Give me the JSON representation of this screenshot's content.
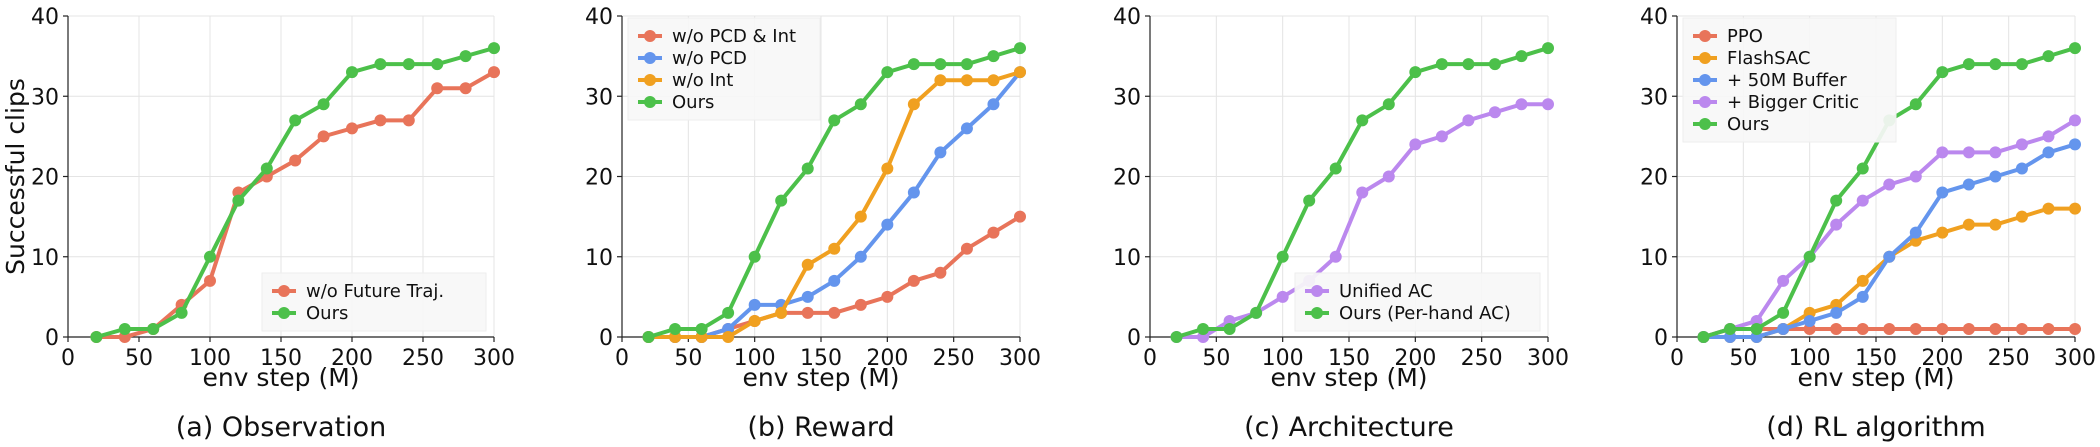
{
  "chart_data": [
    {
      "type": "line",
      "caption": "(a) Observation",
      "xlabel": "env step (M)",
      "ylabel": "Successful clips",
      "xlim": [
        0,
        300
      ],
      "ylim": [
        0,
        40
      ],
      "xticks": [
        "0",
        "50",
        "100",
        "150",
        "200",
        "250",
        "300"
      ],
      "yticks": [
        "0",
        "10",
        "20",
        "30",
        "40"
      ],
      "legend_position": "lower-right",
      "x": [
        20,
        40,
        60,
        80,
        100,
        120,
        140,
        160,
        180,
        200,
        220,
        240,
        260,
        280,
        300
      ],
      "series": [
        {
          "name": "w/o Future Traj.",
          "color": "#e8745a",
          "values": [
            0,
            0,
            1,
            4,
            7,
            18,
            20,
            22,
            25,
            26,
            27,
            27,
            31,
            31,
            33
          ]
        },
        {
          "name": "Ours",
          "color": "#4cc04a",
          "values": [
            0,
            1,
            1,
            3,
            10,
            17,
            21,
            27,
            29,
            33,
            34,
            34,
            34,
            35,
            36
          ]
        }
      ]
    },
    {
      "type": "line",
      "caption": "(b) Reward",
      "xlabel": "env step (M)",
      "ylabel": "",
      "xlim": [
        0,
        300
      ],
      "ylim": [
        0,
        40
      ],
      "xticks": [
        "0",
        "50",
        "100",
        "150",
        "200",
        "250",
        "300"
      ],
      "yticks": [
        "0",
        "10",
        "20",
        "30",
        "40"
      ],
      "legend_position": "upper-left",
      "x": [
        20,
        40,
        60,
        80,
        100,
        120,
        140,
        160,
        180,
        200,
        220,
        240,
        260,
        280,
        300
      ],
      "series": [
        {
          "name": "w/o PCD & Int",
          "color": "#e8745a",
          "values": [
            0,
            0,
            0,
            1,
            2,
            3,
            3,
            3,
            4,
            5,
            7,
            8,
            11,
            13,
            15
          ]
        },
        {
          "name": "w/o PCD",
          "color": "#6495ed",
          "values": [
            0,
            0,
            0,
            1,
            4,
            4,
            5,
            7,
            10,
            14,
            18,
            23,
            26,
            29,
            33
          ]
        },
        {
          "name": "w/o Int",
          "color": "#f0a020",
          "values": [
            0,
            0,
            0,
            0,
            2,
            3,
            9,
            11,
            15,
            21,
            29,
            32,
            32,
            32,
            33
          ]
        },
        {
          "name": "Ours",
          "color": "#4cc04a",
          "values": [
            0,
            1,
            1,
            3,
            10,
            17,
            21,
            27,
            29,
            33,
            34,
            34,
            34,
            35,
            36
          ]
        }
      ]
    },
    {
      "type": "line",
      "caption": "(c) Architecture",
      "xlabel": "env step (M)",
      "ylabel": "",
      "xlim": [
        0,
        300
      ],
      "ylim": [
        0,
        40
      ],
      "xticks": [
        "0",
        "50",
        "100",
        "150",
        "200",
        "250",
        "300"
      ],
      "yticks": [
        "0",
        "10",
        "20",
        "30",
        "40"
      ],
      "legend_position": "lower-right",
      "x": [
        20,
        40,
        60,
        80,
        100,
        120,
        140,
        160,
        180,
        200,
        220,
        240,
        260,
        280,
        300
      ],
      "series": [
        {
          "name": "Unified AC",
          "color": "#bb88ee",
          "values": [
            0,
            0,
            2,
            3,
            5,
            7,
            10,
            18,
            20,
            24,
            25,
            27,
            28,
            29,
            29
          ]
        },
        {
          "name": "Ours (Per-hand AC)",
          "color": "#4cc04a",
          "values": [
            0,
            1,
            1,
            3,
            10,
            17,
            21,
            27,
            29,
            33,
            34,
            34,
            34,
            35,
            36
          ]
        }
      ]
    },
    {
      "type": "line",
      "caption": "(d) RL algorithm",
      "xlabel": "env step (M)",
      "ylabel": "",
      "xlim": [
        0,
        300
      ],
      "ylim": [
        0,
        40
      ],
      "xticks": [
        "0",
        "50",
        "100",
        "150",
        "200",
        "250",
        "300"
      ],
      "yticks": [
        "0",
        "10",
        "20",
        "30",
        "40"
      ],
      "legend_position": "upper-left",
      "x": [
        20,
        40,
        60,
        80,
        100,
        120,
        140,
        160,
        180,
        200,
        220,
        240,
        260,
        280,
        300
      ],
      "series": [
        {
          "name": "PPO",
          "color": "#e8745a",
          "values": [
            0,
            1,
            1,
            1,
            1,
            1,
            1,
            1,
            1,
            1,
            1,
            1,
            1,
            1,
            1
          ]
        },
        {
          "name": "FlashSAC",
          "color": "#f0a020",
          "values": [
            0,
            0,
            0,
            1,
            3,
            4,
            7,
            10,
            12,
            13,
            14,
            14,
            15,
            16,
            16
          ]
        },
        {
          "name": "+ 50M Buffer",
          "color": "#6495ed",
          "values": [
            0,
            0,
            0,
            1,
            2,
            3,
            5,
            10,
            13,
            18,
            19,
            20,
            21,
            23,
            24
          ]
        },
        {
          "name": "+ Bigger Critic",
          "color": "#bb88ee",
          "values": [
            0,
            1,
            2,
            7,
            10,
            14,
            17,
            19,
            20,
            23,
            23,
            23,
            24,
            25,
            27
          ]
        },
        {
          "name": "Ours",
          "color": "#4cc04a",
          "values": [
            0,
            1,
            1,
            3,
            10,
            17,
            21,
            27,
            29,
            33,
            34,
            34,
            34,
            35,
            36
          ]
        }
      ]
    }
  ]
}
